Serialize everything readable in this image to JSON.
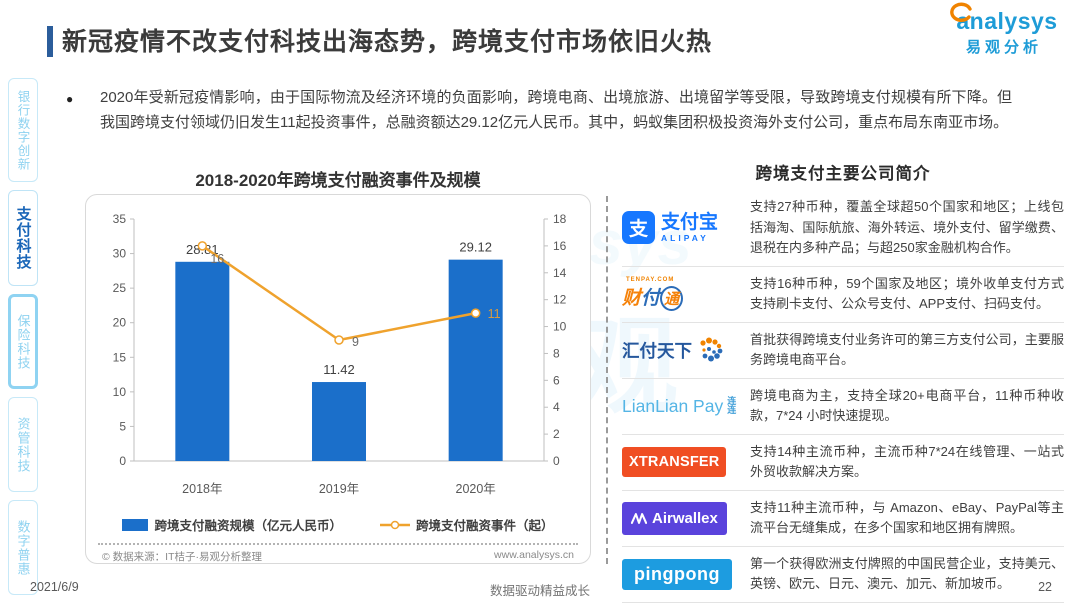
{
  "header": {
    "title": "新冠疫情不改支付科技出海态势，跨境支付市场依旧火热",
    "logo_en": "analysys",
    "logo_cn": "易观分析"
  },
  "sidebar": {
    "items": [
      {
        "label": "银行数字创新",
        "active": false,
        "thick": false
      },
      {
        "label": "支付科技",
        "active": true,
        "thick": false
      },
      {
        "label": "保险科技",
        "active": false,
        "thick": true
      },
      {
        "label": "资管科技",
        "active": false,
        "thick": false
      },
      {
        "label": "数字普惠",
        "active": false,
        "thick": false
      }
    ]
  },
  "intro": {
    "bullet": "●",
    "text": "2020年受新冠疫情影响，由于国际物流及经济环境的负面影响，跨境电商、出境旅游、出境留学等受限，导致跨境支付规模有所下降。但我国跨境支付领域仍旧发生11起投资事件，总融资额达29.12亿元人民币。其中，蚂蚁集团积极投资海外支付公司，重点布局东南亚市场。"
  },
  "chart": {
    "title": "2018-2020年跨境支付融资事件及规模",
    "source_left": "© 数据来源：IT桔子·易观分析整理",
    "source_right": "www.analysys.cn"
  },
  "chart_data": {
    "type": "bar",
    "title": "2018-2020年跨境支付融资事件及规模",
    "categories": [
      "2018年",
      "2019年",
      "2020年"
    ],
    "series": [
      {
        "name": "跨境支付融资规模（亿元人民币）",
        "kind": "bar",
        "axis": "left",
        "color": "#1b6fca",
        "values": [
          28.81,
          11.42,
          29.12
        ]
      },
      {
        "name": "跨境支付融资事件（起）",
        "kind": "line",
        "axis": "right",
        "color": "#efa22d",
        "values": [
          16,
          9,
          11
        ]
      }
    ],
    "left_axis": {
      "min": 0,
      "max": 35,
      "step": 5
    },
    "right_axis": {
      "min": 0,
      "max": 18,
      "step": 2
    },
    "grid": false,
    "legend_position": "bottom"
  },
  "companies": {
    "title": "跨境支付主要公司简介",
    "rows": [
      {
        "logo": {
          "kind": "alipay",
          "icon_char": "支",
          "cn": "支付宝",
          "en": "ALIPAY"
        },
        "desc": "支持27种币种，覆盖全球超50个国家和地区；上线包括海淘、国际航旅、海外转运、境外支付、留学缴费、退税在内多种产品；与超250家金融机构合作。"
      },
      {
        "logo": {
          "kind": "tenpay",
          "chars": [
            "财",
            "付",
            "通"
          ],
          "site": "TENPAY.COM"
        },
        "desc": "支持16种币种，59个国家及地区；境外收单支付方式支持刷卡支付、公众号支付、APP支付、扫码支付。"
      },
      {
        "logo": {
          "kind": "huifu",
          "text": "汇付天下"
        },
        "desc": "首批获得跨境支付业务许可的第三方支付公司，主要服务跨境电商平台。"
      },
      {
        "logo": {
          "kind": "lianlian",
          "text": "LianLian Pay",
          "suffix": "连连"
        },
        "desc": "跨境电商为主，支持全球20+电商平台，11种币种收款，7*24 小时快速提现。"
      },
      {
        "logo": {
          "kind": "xtransfer",
          "text": "XTRANSFER"
        },
        "desc": "支持14种主流币种，主流币种7*24在线管理、一站式外贸收款解决方案。"
      },
      {
        "logo": {
          "kind": "airwallex",
          "text": "Airwallex"
        },
        "desc": "支持11种主流币种，与 Amazon、eBay、PayPal等主流平台无缝集成，在多个国家和地区拥有牌照。"
      },
      {
        "logo": {
          "kind": "pingpong",
          "text": "pingpong"
        },
        "desc": "第一个获得欧洲支付牌照的中国民营企业，支持美元、英镑、欧元、日元、澳元、加元、新加坡币。"
      }
    ]
  },
  "footer": {
    "date": "2021/6/9",
    "slogan": "数据驱动精益成长",
    "page_number": "22"
  },
  "watermarks": {
    "cn": "易观",
    "en": "analysys"
  },
  "colors": {
    "accent_blue": "#2b5d9b",
    "bar_blue": "#1b6fca",
    "line_orange": "#efa22d",
    "brand_blue": "#1e9cd7",
    "brand_orange": "#f08300",
    "sidebar_active": "#1a66b8",
    "sidebar_inactive": "#8ed2f0"
  }
}
